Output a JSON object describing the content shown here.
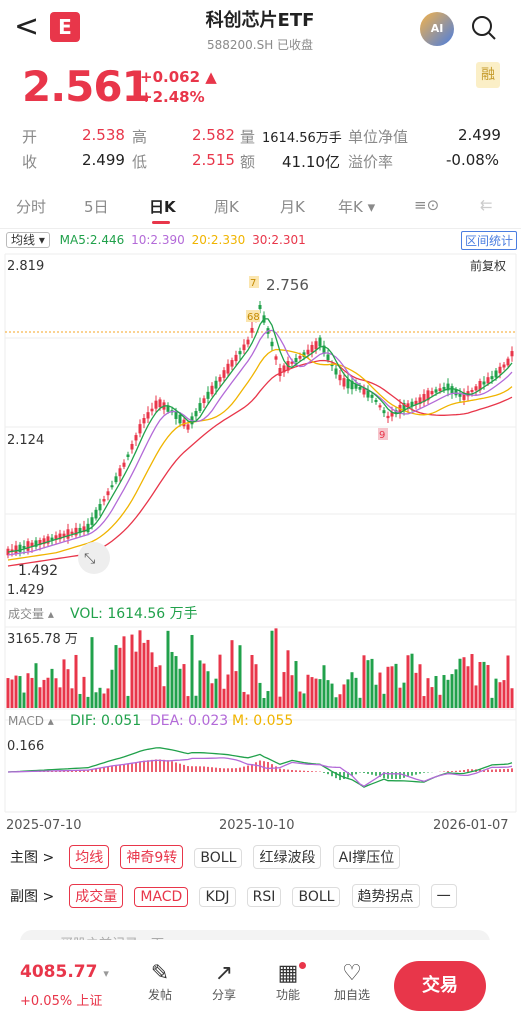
{
  "header": {
    "back": "<",
    "logo": "E",
    "title": "科创芯片ETF",
    "subtitle": "588200.SH  已收盘",
    "ai": "AI",
    "search": "○"
  },
  "quote": {
    "price": "2.561",
    "change": "+0.062 ▲",
    "pct": "+2.48%",
    "margin_badge": "融",
    "row1": [
      {
        "l": "开",
        "v": "2.538"
      },
      {
        "l": "高",
        "v": "2.582"
      },
      {
        "l": "量",
        "v": "1614.56万手"
      },
      {
        "l": "单位净值",
        "v": "2.499"
      }
    ],
    "row2": [
      {
        "l": "收",
        "v": "2.499"
      },
      {
        "l": "低",
        "v": "2.515"
      },
      {
        "l": "额",
        "v": "41.10亿"
      },
      {
        "l": "溢价率",
        "v": "-0.08%"
      }
    ]
  },
  "tabs": [
    "分时",
    "5日",
    "日K",
    "周K",
    "月K",
    "年K ▾",
    "≡⊙",
    "⇇"
  ],
  "ma": {
    "select": "均线 ▾",
    "ma5": "MA5:2.446",
    "ma10": "10:2.390",
    "ma20": "20:2.330",
    "ma30": "30:2.301",
    "adjust": "前复权",
    "range": "区间统计"
  },
  "chart_labels": {
    "high": "2.819",
    "mid": "2.124",
    "low1": "1.492",
    "low2": "1.429",
    "peak": "2.756",
    "marker7": "7",
    "marker68": "68",
    "marker9": "9"
  },
  "vol": {
    "label": "成交量 ▴",
    "value": "VOL: 1614.56 万手",
    "max": "3165.78 万"
  },
  "macd": {
    "label": "MACD ▴",
    "dif": "DIF: 0.051",
    "dea": "DEA: 0.023",
    "m": "M: 0.055",
    "max": "0.166"
  },
  "dates": [
    "2025-07-10",
    "2025-10-10",
    "2026-01-07"
  ],
  "main_chart": {
    "label": "主图 >",
    "items": [
      "均线",
      "神奇9转",
      "BOLL",
      "红绿波段",
      "AI撑压位"
    ]
  },
  "sub_chart": {
    "label": "副图 >",
    "items": [
      "成交量",
      "MACD",
      "KDJ",
      "RSI",
      "BOLL",
      "趋势拐点",
      "一"
    ]
  },
  "comment": "买股之前记录一下",
  "bottom": {
    "index": "4085.77",
    "index_arrow": "▾",
    "index_chg": "+0.05% 上证",
    "items": [
      {
        "icon": "✎",
        "label": "发帖"
      },
      {
        "icon": "↗",
        "label": "分享"
      },
      {
        "icon": "▦",
        "label": "功能"
      },
      {
        "icon": "♡",
        "label": "加自选"
      }
    ],
    "trade": "交易"
  },
  "colors": {
    "up": "#e8364a",
    "down": "#21a14b",
    "ma5": "#21a14b",
    "ma10": "#b36ad8",
    "ma20": "#f0b400",
    "ma30": "#e8364a"
  }
}
